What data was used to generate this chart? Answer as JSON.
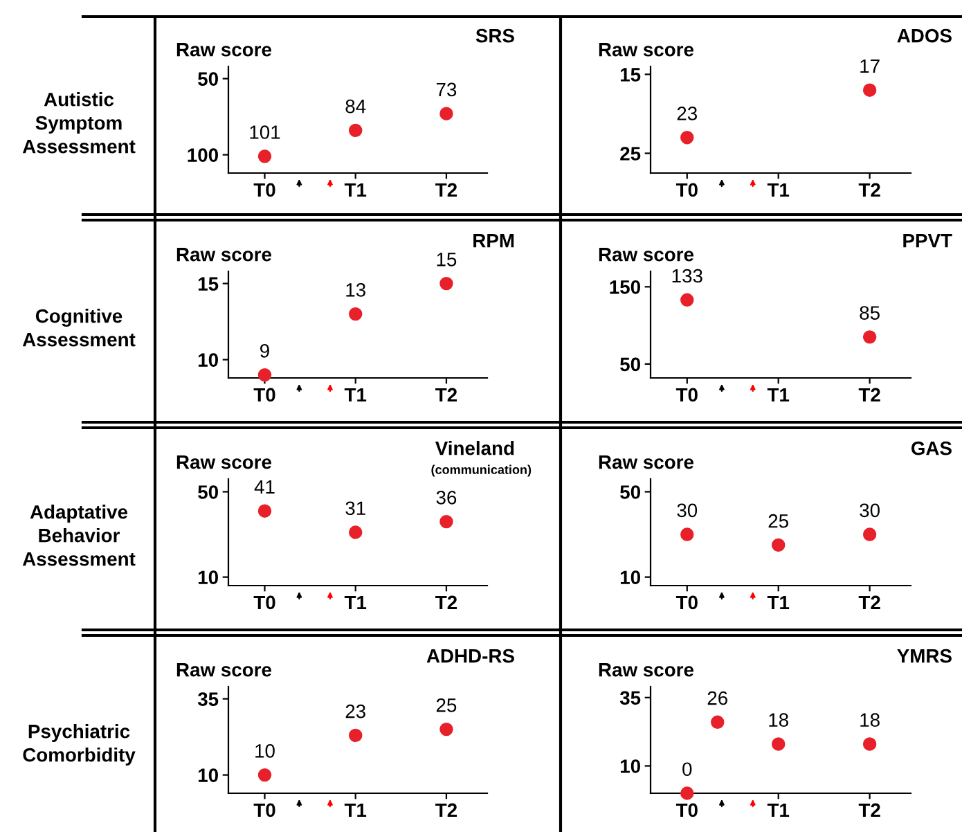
{
  "chart_data": [
    {
      "type": "scatter",
      "title": "SRS",
      "ylabel": "Raw score",
      "annotations": [
        "Autistic Symptom Assessment"
      ],
      "categories": [
        "T0",
        "T1",
        "T2"
      ],
      "values": [
        101,
        84,
        73
      ],
      "color": "#e8202a",
      "ylim": [
        112,
        42
      ],
      "yticks": [
        50,
        100
      ],
      "data_labels": true,
      "marker": "circle"
    },
    {
      "type": "scatter",
      "title": "ADOS",
      "ylabel": "Raw score",
      "categories": [
        "T0",
        "T1",
        "T2"
      ],
      "values": [
        23,
        null,
        17
      ],
      "color": "#e8202a",
      "ylim": [
        27.5,
        14
      ],
      "yticks": [
        15,
        25
      ],
      "data_labels": true,
      "marker": "circle"
    },
    {
      "type": "scatter",
      "title": "RPM",
      "ylabel": "Raw score",
      "annotations": [
        "Cognitive Assessment"
      ],
      "categories": [
        "T0",
        "T1",
        "T2"
      ],
      "values": [
        9,
        13,
        15
      ],
      "color": "#e8202a",
      "ylim": [
        8.8,
        15.8
      ],
      "yticks": [
        10,
        15
      ],
      "data_labels": true,
      "marker": "circle"
    },
    {
      "type": "scatter",
      "title": "PPVT",
      "ylabel": "Raw score",
      "categories": [
        "T0",
        "T1",
        "T2"
      ],
      "values": [
        133,
        null,
        85
      ],
      "color": "#e8202a",
      "ylim": [
        32,
        170
      ],
      "yticks": [
        50,
        150
      ],
      "data_labels": true,
      "marker": "circle"
    },
    {
      "type": "scatter",
      "title": "Vineland",
      "subtitle": "(communication)",
      "ylabel": "Raw score",
      "annotations": [
        "Adaptative Behavior Assessment"
      ],
      "categories": [
        "T0",
        "T1",
        "T2"
      ],
      "values": [
        41,
        31,
        36
      ],
      "color": "#e8202a",
      "ylim": [
        6,
        56
      ],
      "yticks": [
        10,
        50
      ],
      "data_labels": true,
      "marker": "circle"
    },
    {
      "type": "scatter",
      "title": "GAS",
      "ylabel": "Raw score",
      "categories": [
        "T0",
        "T1",
        "T2"
      ],
      "values": [
        30,
        25,
        30
      ],
      "color": "#e8202a",
      "ylim": [
        6,
        56
      ],
      "yticks": [
        10,
        50
      ],
      "data_labels": true,
      "marker": "circle"
    },
    {
      "type": "scatter",
      "title": "ADHD-RS",
      "ylabel": "Raw score",
      "annotations": [
        "Psychiatric Comorbidity"
      ],
      "categories": [
        "T0",
        "T1",
        "T2"
      ],
      "values": [
        10,
        23,
        25
      ],
      "color": "#e8202a",
      "ylim": [
        4,
        39
      ],
      "yticks": [
        10,
        35
      ],
      "data_labels": true,
      "marker": "circle"
    },
    {
      "type": "scatter",
      "title": "YMRS",
      "ylabel": "Raw score",
      "categories": [
        "T0",
        null,
        null,
        "T1",
        null,
        null,
        "T2"
      ],
      "values": [
        0,
        26,
        null,
        18,
        null,
        null,
        18
      ],
      "color": "#e8202a",
      "ylim": [
        0,
        39
      ],
      "yticks": [
        10,
        35
      ],
      "data_labels": true,
      "marker": "circle"
    }
  ]
}
